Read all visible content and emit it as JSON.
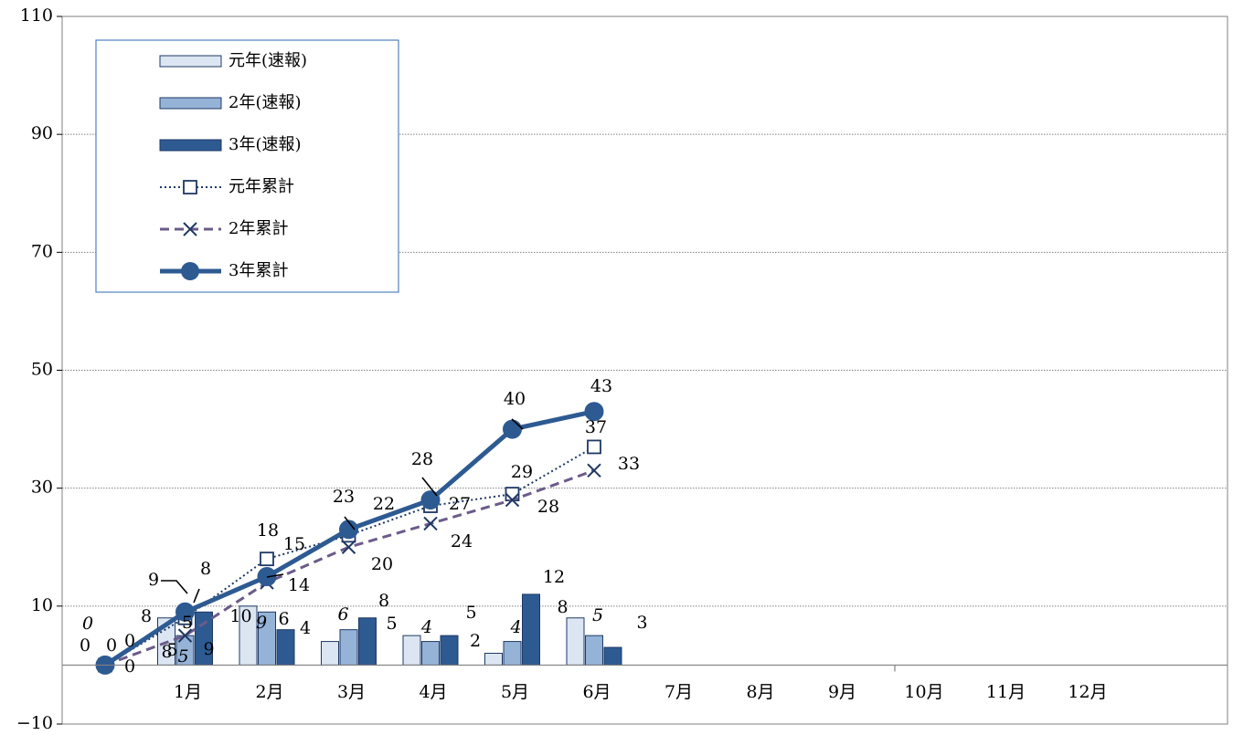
{
  "chart_data": {
    "type": "bar",
    "title": "",
    "xlabel": "",
    "ylabel": "",
    "ylim": [
      -10,
      110
    ],
    "yticks": [
      -10,
      10,
      30,
      50,
      70,
      90,
      110
    ],
    "grid": "dotted horizontal",
    "legend": "top-left",
    "categories": [
      "1月",
      "2月",
      "3月",
      "4月",
      "5月",
      "6月",
      "7月",
      "8月",
      "9月",
      "10月",
      "11月",
      "12月"
    ],
    "bar_series": [
      {
        "name": "元年(速報)",
        "color": "#dce6f2",
        "values": [
          8,
          10,
          4,
          5,
          2,
          8,
          null,
          null,
          null,
          null,
          null,
          null
        ]
      },
      {
        "name": "2年(速報)",
        "color": "#95b3d7",
        "values": [
          5,
          9,
          6,
          4,
          4,
          5,
          null,
          null,
          null,
          null,
          null,
          null
        ]
      },
      {
        "name": "3年(速報)",
        "color": "#2e5a92",
        "values": [
          9,
          6,
          8,
          5,
          12,
          3,
          null,
          null,
          null,
          null,
          null,
          null
        ]
      }
    ],
    "line_series": [
      {
        "name": "元年累計",
        "color": "#1f3864",
        "style": "dotted",
        "marker": "square",
        "values": [
          0,
          8,
          18,
          22,
          27,
          29,
          37
        ]
      },
      {
        "name": "2年累計",
        "color": "#6b5b8a",
        "style": "dashed",
        "marker": "x",
        "values": [
          0,
          5,
          14,
          20,
          24,
          28,
          33
        ]
      },
      {
        "name": "3年累計",
        "color": "#2e5a92",
        "style": "solid",
        "marker": "circle",
        "values": [
          0,
          9,
          15,
          23,
          28,
          40,
          43
        ]
      }
    ],
    "start_labels": [
      "0",
      "0",
      "0",
      "0",
      "0"
    ]
  }
}
